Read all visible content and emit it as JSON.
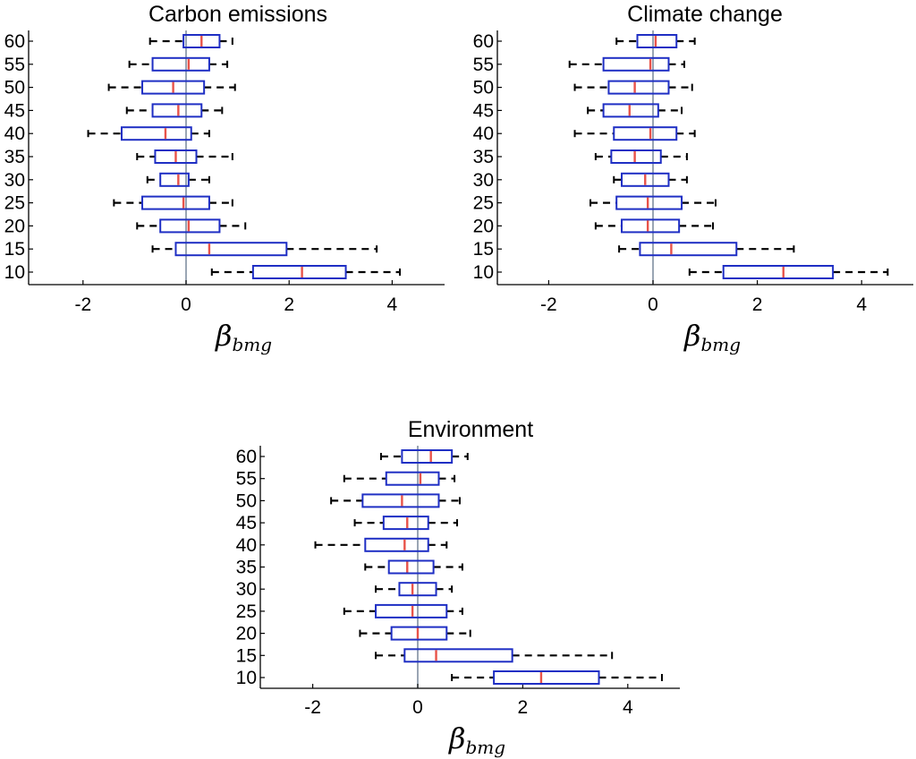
{
  "chart_data": [
    {
      "type": "box",
      "title": "Carbon emissions",
      "xlabel": "β",
      "xlabel_sub": "bmg",
      "xlim": [
        -3,
        5
      ],
      "xticks": [
        "-2",
        "0",
        "2",
        "4"
      ],
      "zero_reference_line": true,
      "categories": [
        "60",
        "55",
        "50",
        "45",
        "40",
        "35",
        "30",
        "25",
        "20",
        "15",
        "10"
      ],
      "boxes": [
        {
          "category": "60",
          "whisker_low": -0.7,
          "q1": -0.05,
          "median": 0.3,
          "q3": 0.65,
          "whisker_high": 0.9
        },
        {
          "category": "55",
          "whisker_low": -1.1,
          "q1": -0.65,
          "median": 0.05,
          "q3": 0.45,
          "whisker_high": 0.8
        },
        {
          "category": "50",
          "whisker_low": -1.5,
          "q1": -0.85,
          "median": -0.25,
          "q3": 0.35,
          "whisker_high": 0.95
        },
        {
          "category": "45",
          "whisker_low": -1.15,
          "q1": -0.65,
          "median": -0.15,
          "q3": 0.3,
          "whisker_high": 0.7
        },
        {
          "category": "40",
          "whisker_low": -1.9,
          "q1": -1.25,
          "median": -0.4,
          "q3": 0.1,
          "whisker_high": 0.45
        },
        {
          "category": "35",
          "whisker_low": -0.95,
          "q1": -0.6,
          "median": -0.2,
          "q3": 0.2,
          "whisker_high": 0.9
        },
        {
          "category": "30",
          "whisker_low": -0.75,
          "q1": -0.5,
          "median": -0.15,
          "q3": 0.05,
          "whisker_high": 0.45
        },
        {
          "category": "25",
          "whisker_low": -1.4,
          "q1": -0.85,
          "median": -0.05,
          "q3": 0.45,
          "whisker_high": 0.9
        },
        {
          "category": "20",
          "whisker_low": -0.95,
          "q1": -0.5,
          "median": 0.05,
          "q3": 0.65,
          "whisker_high": 1.15
        },
        {
          "category": "15",
          "whisker_low": -0.65,
          "q1": -0.2,
          "median": 0.45,
          "q3": 1.95,
          "whisker_high": 3.7
        },
        {
          "category": "10",
          "whisker_low": 0.5,
          "q1": 1.3,
          "median": 2.25,
          "q3": 3.1,
          "whisker_high": 4.15
        }
      ]
    },
    {
      "type": "box",
      "title": "Climate change",
      "xlabel": "β",
      "xlabel_sub": "bmg",
      "xlim": [
        -3,
        5
      ],
      "xticks": [
        "-2",
        "0",
        "2",
        "4"
      ],
      "zero_reference_line": true,
      "categories": [
        "60",
        "55",
        "50",
        "45",
        "40",
        "35",
        "30",
        "25",
        "20",
        "15",
        "10"
      ],
      "boxes": [
        {
          "category": "60",
          "whisker_low": -0.7,
          "q1": -0.3,
          "median": 0.05,
          "q3": 0.45,
          "whisker_high": 0.8
        },
        {
          "category": "55",
          "whisker_low": -1.6,
          "q1": -0.95,
          "median": -0.05,
          "q3": 0.3,
          "whisker_high": 0.6
        },
        {
          "category": "50",
          "whisker_low": -1.5,
          "q1": -0.85,
          "median": -0.35,
          "q3": 0.3,
          "whisker_high": 0.75
        },
        {
          "category": "45",
          "whisker_low": -1.25,
          "q1": -0.95,
          "median": -0.45,
          "q3": 0.1,
          "whisker_high": 0.55
        },
        {
          "category": "40",
          "whisker_low": -1.5,
          "q1": -0.75,
          "median": -0.05,
          "q3": 0.45,
          "whisker_high": 0.8
        },
        {
          "category": "35",
          "whisker_low": -1.1,
          "q1": -0.8,
          "median": -0.35,
          "q3": 0.15,
          "whisker_high": 0.65
        },
        {
          "category": "30",
          "whisker_low": -0.75,
          "q1": -0.6,
          "median": -0.15,
          "q3": 0.3,
          "whisker_high": 0.65
        },
        {
          "category": "25",
          "whisker_low": -1.2,
          "q1": -0.7,
          "median": -0.1,
          "q3": 0.55,
          "whisker_high": 1.2
        },
        {
          "category": "20",
          "whisker_low": -1.1,
          "q1": -0.6,
          "median": -0.1,
          "q3": 0.5,
          "whisker_high": 1.15
        },
        {
          "category": "15",
          "whisker_low": -0.65,
          "q1": -0.25,
          "median": 0.35,
          "q3": 1.6,
          "whisker_high": 2.7
        },
        {
          "category": "10",
          "whisker_low": 0.7,
          "q1": 1.35,
          "median": 2.5,
          "q3": 3.45,
          "whisker_high": 4.5
        }
      ]
    },
    {
      "type": "box",
      "title": "Environment",
      "xlabel": "β",
      "xlabel_sub": "bmg",
      "xlim": [
        -3,
        5
      ],
      "xticks": [
        "-2",
        "0",
        "2",
        "4"
      ],
      "zero_reference_line": true,
      "categories": [
        "60",
        "55",
        "50",
        "45",
        "40",
        "35",
        "30",
        "25",
        "20",
        "15",
        "10"
      ],
      "boxes": [
        {
          "category": "60",
          "whisker_low": -0.7,
          "q1": -0.3,
          "median": 0.25,
          "q3": 0.65,
          "whisker_high": 0.95
        },
        {
          "category": "55",
          "whisker_low": -1.4,
          "q1": -0.6,
          "median": 0.05,
          "q3": 0.4,
          "whisker_high": 0.7
        },
        {
          "category": "50",
          "whisker_low": -1.65,
          "q1": -1.05,
          "median": -0.3,
          "q3": 0.4,
          "whisker_high": 0.8
        },
        {
          "category": "45",
          "whisker_low": -1.2,
          "q1": -0.65,
          "median": -0.2,
          "q3": 0.2,
          "whisker_high": 0.75
        },
        {
          "category": "40",
          "whisker_low": -1.95,
          "q1": -1.0,
          "median": -0.25,
          "q3": 0.2,
          "whisker_high": 0.55
        },
        {
          "category": "35",
          "whisker_low": -1.0,
          "q1": -0.55,
          "median": -0.2,
          "q3": 0.3,
          "whisker_high": 0.85
        },
        {
          "category": "30",
          "whisker_low": -0.8,
          "q1": -0.35,
          "median": -0.1,
          "q3": 0.35,
          "whisker_high": 0.65
        },
        {
          "category": "25",
          "whisker_low": -1.4,
          "q1": -0.8,
          "median": -0.1,
          "q3": 0.55,
          "whisker_high": 0.85
        },
        {
          "category": "20",
          "whisker_low": -1.1,
          "q1": -0.5,
          "median": 0.0,
          "q3": 0.55,
          "whisker_high": 1.0
        },
        {
          "category": "15",
          "whisker_low": -0.8,
          "q1": -0.25,
          "median": 0.35,
          "q3": 1.8,
          "whisker_high": 3.7
        },
        {
          "category": "10",
          "whisker_low": 0.65,
          "q1": 1.45,
          "median": 2.35,
          "q3": 3.45,
          "whisker_high": 4.65
        }
      ]
    }
  ],
  "colors": {
    "box_edge": "#1f2fc4",
    "median": "#e8534a",
    "whisker": "#000000",
    "axis": "#000000",
    "zero_line": "#6f7f95"
  }
}
